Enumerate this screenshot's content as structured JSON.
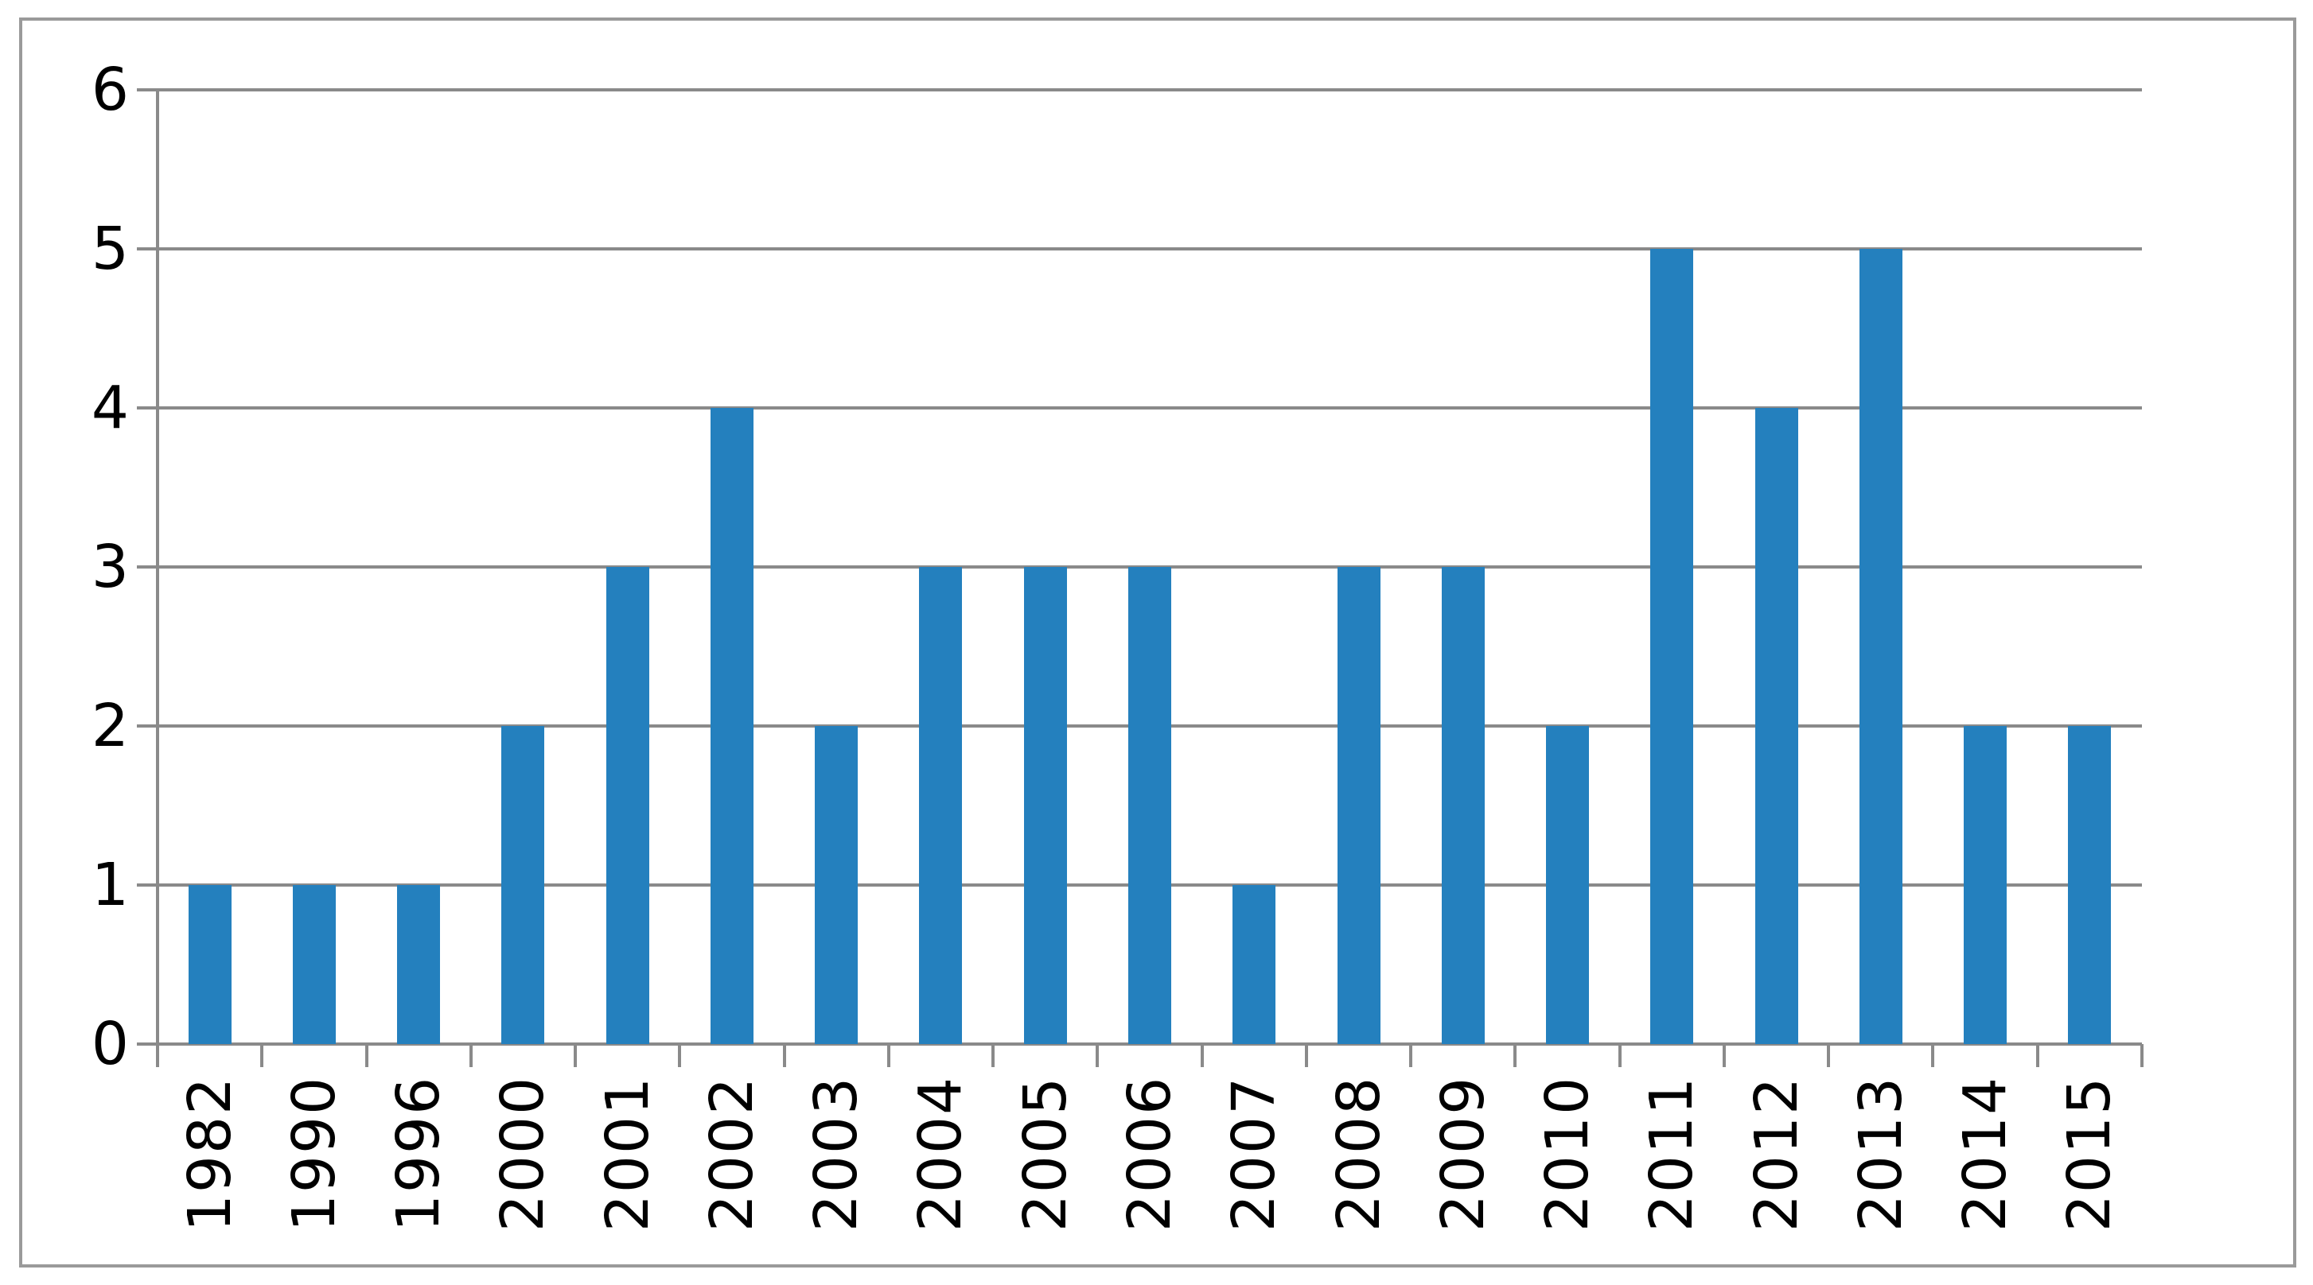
{
  "chart_data": {
    "type": "bar",
    "title": "",
    "xlabel": "",
    "ylabel": "",
    "categories": [
      "1982",
      "1990",
      "1996",
      "2000",
      "2001",
      "2002",
      "2003",
      "2004",
      "2005",
      "2006",
      "2007",
      "2008",
      "2009",
      "2010",
      "2011",
      "2012",
      "2013",
      "2014",
      "2015"
    ],
    "values": [
      1,
      1,
      1,
      2,
      3,
      4,
      2,
      3,
      3,
      3,
      1,
      3,
      3,
      2,
      5,
      4,
      5,
      2,
      2
    ],
    "ylim": [
      0,
      6
    ],
    "yticks": [
      0,
      1,
      2,
      3,
      4,
      5,
      6
    ],
    "grid": true,
    "legend_position": "none",
    "colors": {
      "bar": "#2480be",
      "gridline": "#8a8a8a",
      "axis": "#8a8a8a",
      "tick": "#8a8a8a",
      "label": "#000000",
      "frame_border": "#9a9a9a",
      "background": "#ffffff"
    }
  }
}
